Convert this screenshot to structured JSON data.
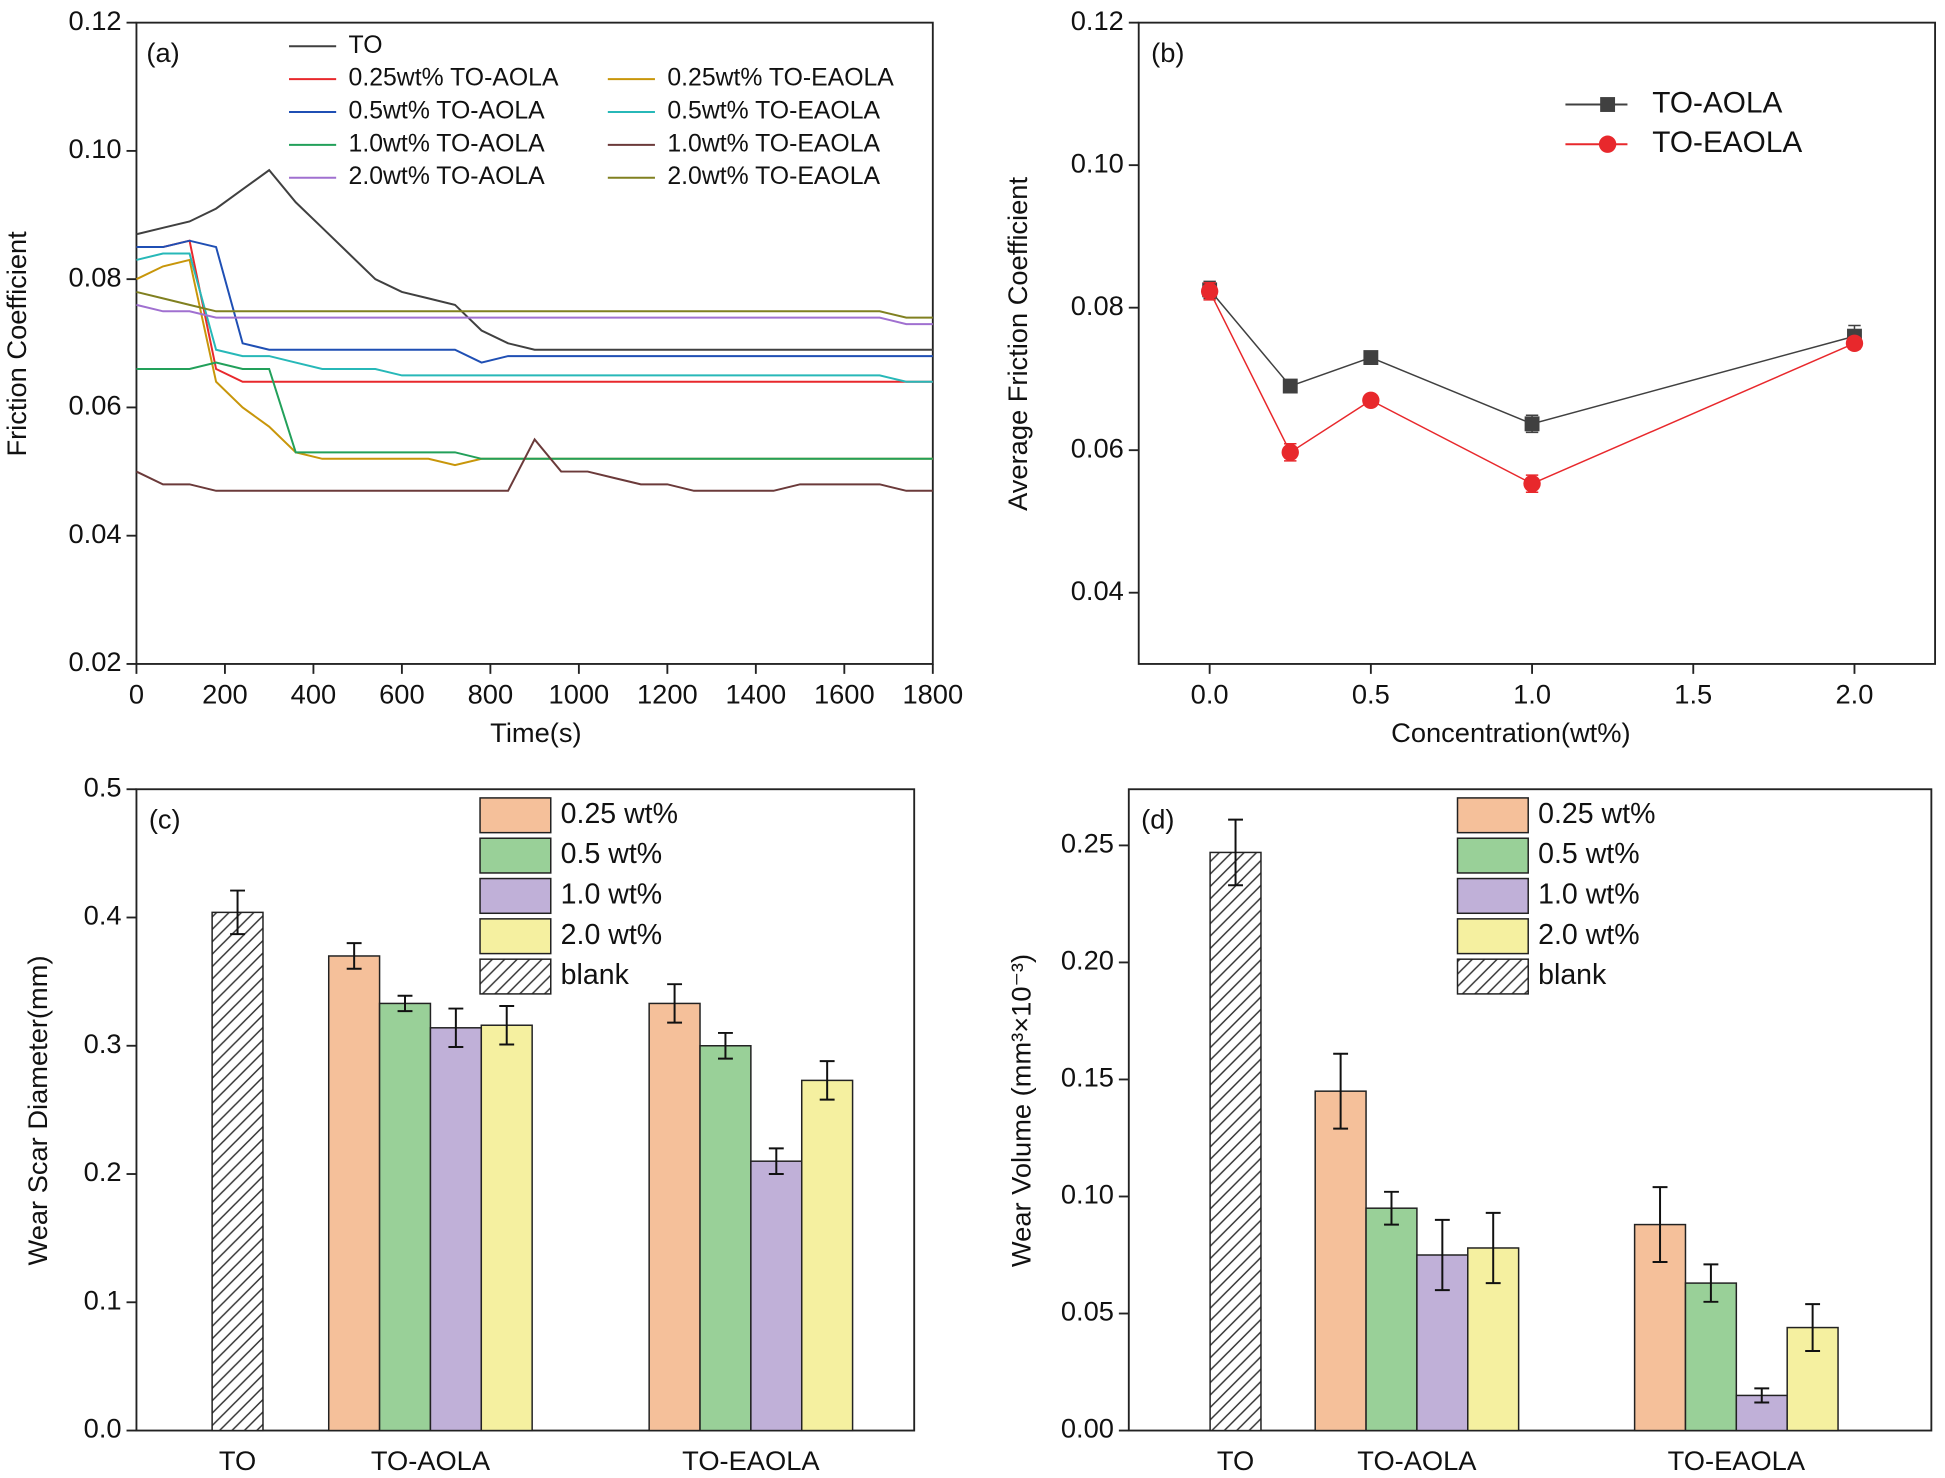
{
  "chart_data": [
    {
      "type": "line",
      "annotation": "(a)",
      "x_label": "Time(s)",
      "y_label": "Friction Coefficient",
      "x": [
        0,
        60,
        120,
        180,
        240,
        300,
        360,
        420,
        480,
        540,
        600,
        660,
        720,
        780,
        840,
        900,
        960,
        1020,
        1080,
        1140,
        1200,
        1260,
        1320,
        1380,
        1440,
        1500,
        1560,
        1620,
        1680,
        1740,
        1800
      ],
      "xlim": [
        0,
        1800
      ],
      "xticks": [
        0,
        200,
        400,
        600,
        800,
        1000,
        1200,
        1400,
        1600,
        1800
      ],
      "ylim": [
        0.02,
        0.12
      ],
      "yticks": [
        0.02,
        0.04,
        0.06,
        0.08,
        {
          "value": 0.1,
          "label": "0.10"
        },
        0.12
      ],
      "series": [
        {
          "name": "TO",
          "color": "#404040",
          "values": [
            0.087,
            0.088,
            0.089,
            0.091,
            0.094,
            0.097,
            0.092,
            0.088,
            0.084,
            0.08,
            0.078,
            0.077,
            0.076,
            0.072,
            0.07,
            0.069,
            0.069,
            0.069,
            0.069,
            0.069,
            0.069,
            0.069,
            0.069,
            0.069,
            0.069,
            0.069,
            0.069,
            0.069,
            0.069,
            0.069,
            0.069
          ]
        },
        {
          "name": "0.25wt% TO-AOLA",
          "color": "#e8282c",
          "values": [
            0.085,
            0.085,
            0.086,
            0.066,
            0.064,
            0.064,
            0.064,
            0.064,
            0.064,
            0.064,
            0.064,
            0.064,
            0.064,
            0.064,
            0.064,
            0.064,
            0.064,
            0.064,
            0.064,
            0.064,
            0.064,
            0.064,
            0.064,
            0.064,
            0.064,
            0.064,
            0.064,
            0.064,
            0.064,
            0.064,
            0.064
          ]
        },
        {
          "name": "0.25wt% TO-EAOLA",
          "color": "#c8960a",
          "values": [
            0.08,
            0.082,
            0.083,
            0.064,
            0.06,
            0.057,
            0.053,
            0.052,
            0.052,
            0.052,
            0.052,
            0.052,
            0.051,
            0.052,
            0.052,
            0.052,
            0.052,
            0.052,
            0.052,
            0.052,
            0.052,
            0.052,
            0.052,
            0.052,
            0.052,
            0.052,
            0.052,
            0.052,
            0.052,
            0.052,
            0.052
          ]
        },
        {
          "name": "0.5wt% TO-AOLA",
          "color": "#1f4fb4",
          "values": [
            0.085,
            0.085,
            0.086,
            0.085,
            0.07,
            0.069,
            0.069,
            0.069,
            0.069,
            0.069,
            0.069,
            0.069,
            0.069,
            0.067,
            0.068,
            0.068,
            0.068,
            0.068,
            0.068,
            0.068,
            0.068,
            0.068,
            0.068,
            0.068,
            0.068,
            0.068,
            0.068,
            0.068,
            0.068,
            0.068,
            0.068
          ]
        },
        {
          "name": "0.5wt% TO-EAOLA",
          "color": "#27b8b8",
          "values": [
            0.083,
            0.084,
            0.084,
            0.069,
            0.068,
            0.068,
            0.067,
            0.066,
            0.066,
            0.066,
            0.065,
            0.065,
            0.065,
            0.065,
            0.065,
            0.065,
            0.065,
            0.065,
            0.065,
            0.065,
            0.065,
            0.065,
            0.065,
            0.065,
            0.065,
            0.065,
            0.065,
            0.065,
            0.065,
            0.064,
            0.064
          ]
        },
        {
          "name": "1.0wt% TO-AOLA",
          "color": "#22a05a",
          "values": [
            0.066,
            0.066,
            0.066,
            0.067,
            0.066,
            0.066,
            0.053,
            0.053,
            0.053,
            0.053,
            0.053,
            0.053,
            0.053,
            0.052,
            0.052,
            0.052,
            0.052,
            0.052,
            0.052,
            0.052,
            0.052,
            0.052,
            0.052,
            0.052,
            0.052,
            0.052,
            0.052,
            0.052,
            0.052,
            0.052,
            0.052
          ]
        },
        {
          "name": "1.0wt% TO-EAOLA",
          "color": "#6b3a3a",
          "values": [
            0.05,
            0.048,
            0.048,
            0.047,
            0.047,
            0.047,
            0.047,
            0.047,
            0.047,
            0.047,
            0.047,
            0.047,
            0.047,
            0.047,
            0.047,
            0.055,
            0.05,
            0.05,
            0.049,
            0.048,
            0.048,
            0.047,
            0.047,
            0.047,
            0.047,
            0.048,
            0.048,
            0.048,
            0.048,
            0.047,
            0.047
          ]
        },
        {
          "name": "2.0wt% TO-AOLA",
          "color": "#a070d0",
          "values": [
            0.076,
            0.075,
            0.075,
            0.074,
            0.074,
            0.074,
            0.074,
            0.074,
            0.074,
            0.074,
            0.074,
            0.074,
            0.074,
            0.074,
            0.074,
            0.074,
            0.074,
            0.074,
            0.074,
            0.074,
            0.074,
            0.074,
            0.074,
            0.074,
            0.074,
            0.074,
            0.074,
            0.074,
            0.074,
            0.073,
            0.073
          ]
        },
        {
          "name": "2.0wt% TO-EAOLA",
          "color": "#808020",
          "values": [
            0.078,
            0.077,
            0.076,
            0.075,
            0.075,
            0.075,
            0.075,
            0.075,
            0.075,
            0.075,
            0.075,
            0.075,
            0.075,
            0.075,
            0.075,
            0.075,
            0.075,
            0.075,
            0.075,
            0.075,
            0.075,
            0.075,
            0.075,
            0.075,
            0.075,
            0.075,
            0.075,
            0.075,
            0.075,
            0.074,
            0.074
          ]
        }
      ]
    },
    {
      "type": "line",
      "annotation": "(b)",
      "x_label": "Concentration(wt%)",
      "y_label": "Average Friction Coefficient",
      "x": [
        0,
        0.25,
        0.5,
        1.0,
        2.0
      ],
      "xlim": [
        -0.22,
        2.25
      ],
      "xticks": [
        {
          "value": 0,
          "label": "0.0"
        },
        0.5,
        {
          "value": 1,
          "label": "1.0"
        },
        1.5,
        {
          "value": 2,
          "label": "2.0"
        }
      ],
      "ylim": [
        0.03,
        0.12
      ],
      "yticks": [
        0.04,
        0.06,
        0.08,
        {
          "value": 0.1,
          "label": "0.10"
        },
        0.12
      ],
      "series": [
        {
          "name": "TO-AOLA",
          "color": "#404040",
          "marker": "square",
          "values": [
            0.0825,
            0.069,
            0.073,
            0.0637,
            0.076
          ],
          "errors": [
            0.0012,
            0.0005,
            0.0005,
            0.0012,
            0.0015
          ]
        },
        {
          "name": "TO-EAOLA",
          "color": "#e8282c",
          "marker": "circle",
          "values": [
            0.0823,
            0.0597,
            0.067,
            0.0553,
            0.075
          ],
          "errors": [
            0.0012,
            0.0012,
            0.0007,
            0.0012,
            0.0008
          ]
        }
      ]
    },
    {
      "type": "bar",
      "annotation": "(c)",
      "y_label": "Wear Scar Diameter(mm)",
      "categories": [
        "TO",
        "TO-AOLA",
        "TO-EAOLA"
      ],
      "ylim": [
        0,
        0.5
      ],
      "yticks": [
        {
          "value": 0,
          "label": "0.0"
        },
        0.1,
        0.2,
        0.3,
        0.4,
        0.5
      ],
      "series": [
        {
          "name": "0.25 wt%",
          "color": "#f5c09a",
          "values": [
            null,
            0.37,
            0.333
          ],
          "errors": [
            null,
            0.01,
            0.015
          ]
        },
        {
          "name": "0.5 wt%",
          "color": "#99d098",
          "values": [
            null,
            0.333,
            0.3
          ],
          "errors": [
            null,
            0.006,
            0.01
          ]
        },
        {
          "name": "1.0 wt%",
          "color": "#c0b0d8",
          "values": [
            null,
            0.314,
            0.21
          ],
          "errors": [
            null,
            0.015,
            0.01
          ]
        },
        {
          "name": "2.0 wt%",
          "color": "#f5f0a0",
          "values": [
            null,
            0.316,
            0.273
          ],
          "errors": [
            null,
            0.015,
            0.015
          ]
        },
        {
          "name": "blank",
          "color": "#ffffff",
          "pattern": "hatch",
          "values": [
            0.404,
            null,
            null
          ],
          "errors": [
            0.017,
            null,
            null
          ]
        }
      ]
    },
    {
      "type": "bar",
      "annotation": "(d)",
      "y_label": "Wear Volume (mm³×10⁻³)",
      "categories": [
        "TO",
        "TO-AOLA",
        "TO-EAOLA"
      ],
      "ylim": [
        0,
        0.274
      ],
      "yticks": [
        {
          "value": 0,
          "label": "0.00"
        },
        0.05,
        {
          "value": 0.1,
          "label": "0.10"
        },
        0.15,
        {
          "value": 0.2,
          "label": "0.20"
        },
        0.25
      ],
      "series": [
        {
          "name": "0.25 wt%",
          "color": "#f5c09a",
          "values": [
            null,
            0.145,
            0.088
          ],
          "errors": [
            null,
            0.016,
            0.016
          ]
        },
        {
          "name": "0.5 wt%",
          "color": "#99d098",
          "values": [
            null,
            0.095,
            0.063
          ],
          "errors": [
            null,
            0.007,
            0.008
          ]
        },
        {
          "name": "1.0 wt%",
          "color": "#c0b0d8",
          "values": [
            null,
            0.075,
            0.015
          ],
          "errors": [
            null,
            0.015,
            0.003
          ]
        },
        {
          "name": "2.0 wt%",
          "color": "#f5f0a0",
          "values": [
            null,
            0.078,
            0.044
          ],
          "errors": [
            null,
            0.015,
            0.01
          ]
        },
        {
          "name": "blank",
          "color": "#ffffff",
          "pattern": "hatch",
          "values": [
            0.247,
            null,
            null
          ],
          "errors": [
            0.014,
            null,
            null
          ]
        }
      ]
    }
  ]
}
